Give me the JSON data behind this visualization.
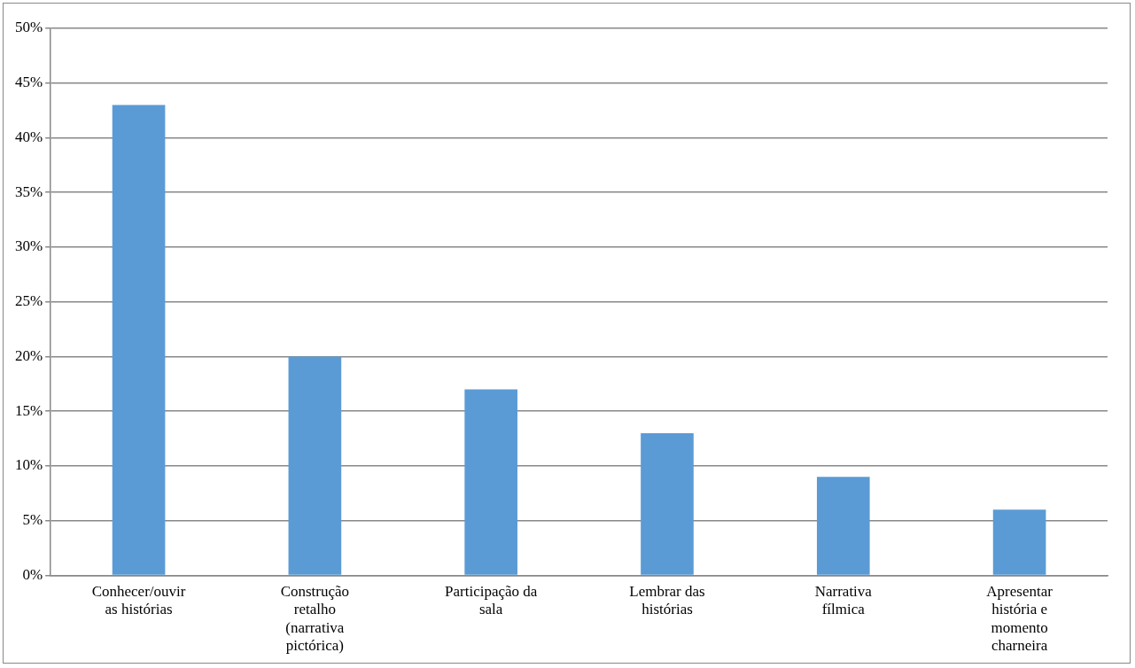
{
  "chart_data": {
    "type": "bar",
    "categories": [
      "Conhecer/ouvir as histórias",
      "Construção retalho (narrativa pictórica)",
      "Participação da sala",
      "Lembrar das histórias",
      "Narrativa fílmica",
      "Apresentar história e momento charneira"
    ],
    "values": [
      43,
      20,
      17,
      13,
      9,
      6
    ],
    "color": "#5b9bd5",
    "ylim": [
      0,
      50
    ],
    "yticks": [
      {
        "value": 0,
        "label": "0%"
      },
      {
        "value": 5,
        "label": "5%"
      },
      {
        "value": 10,
        "label": "10%"
      },
      {
        "value": 15,
        "label": "15%"
      },
      {
        "value": 20,
        "label": "20%"
      },
      {
        "value": 25,
        "label": "25%"
      },
      {
        "value": 30,
        "label": "30%"
      },
      {
        "value": 35,
        "label": "35%"
      },
      {
        "value": 40,
        "label": "40%"
      },
      {
        "value": 45,
        "label": "45%"
      },
      {
        "value": 50,
        "label": "50%"
      }
    ],
    "grid": "y"
  }
}
